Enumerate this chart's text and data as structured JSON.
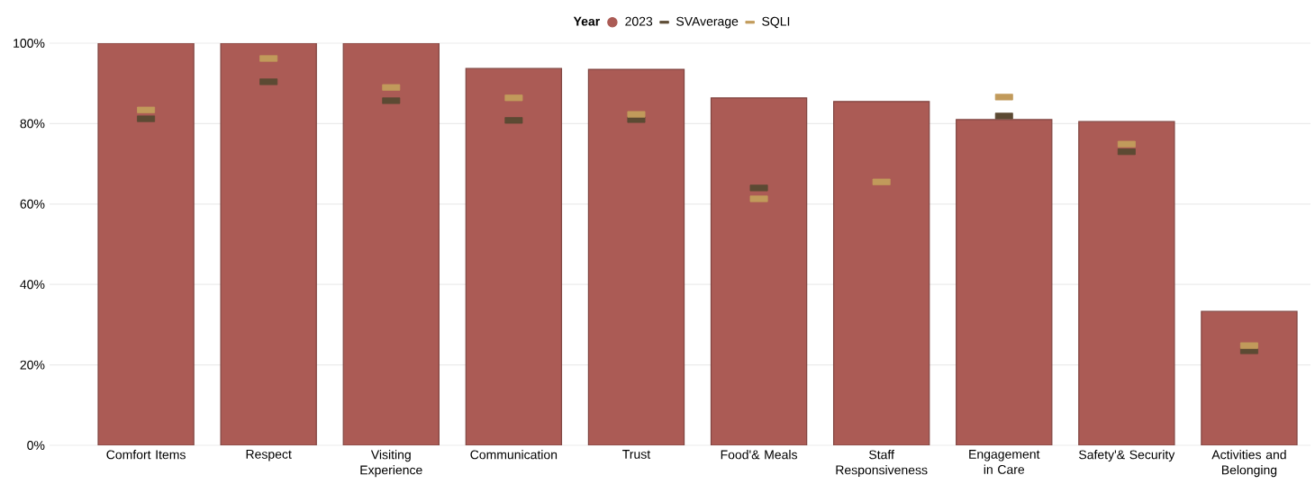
{
  "chart_data": {
    "type": "bar",
    "legend_title": "Year",
    "legend": "top",
    "grid": "y",
    "categories": [
      "Comfort Items",
      "Respect",
      "Visiting Experience",
      "Communication",
      "Trust",
      "Food'& Meals",
      "Staff Responsiveness",
      "Engagement in Care",
      "Safety'& Security",
      "Activities and Belonging"
    ],
    "series": [
      {
        "name": "2023",
        "color": "#ab5b55",
        "values": [
          100,
          100,
          100,
          93.7,
          93.5,
          86.4,
          85.5,
          81.0,
          80.5,
          33.3
        ]
      },
      {
        "name": "SVAverage",
        "type": "scatter",
        "marker": "square",
        "color": "#5c4a33",
        "values": [
          81.2,
          90.4,
          85.7,
          80.8,
          81.0,
          64.0,
          null,
          81.9,
          73.0,
          23.5
        ]
      },
      {
        "name": "SQLI",
        "type": "scatter",
        "marker": "square",
        "color": "#c19a5b",
        "values": [
          83.4,
          96.2,
          89.0,
          86.4,
          82.3,
          61.3,
          65.5,
          86.6,
          74.9,
          24.8
        ]
      }
    ],
    "ylim": [
      0,
      100
    ],
    "yticks": [
      {
        "value": 0,
        "label": "0%"
      },
      {
        "value": 20,
        "label": "20%"
      },
      {
        "value": 40,
        "label": "40%"
      },
      {
        "value": 60,
        "label": "60%"
      },
      {
        "value": 80,
        "label": "80%"
      },
      {
        "value": 100,
        "label": "100%"
      }
    ]
  }
}
